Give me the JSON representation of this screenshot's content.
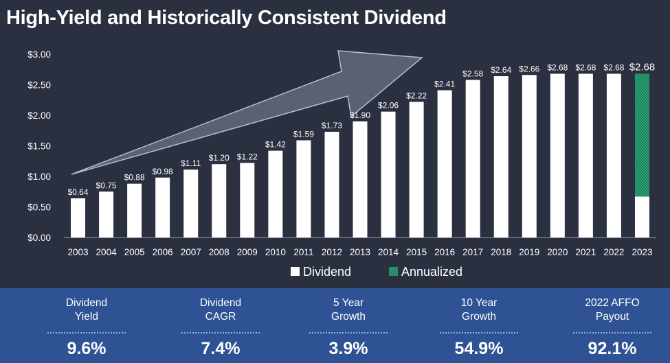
{
  "title": "High-Yield and Historically Consistent Dividend",
  "chart_data": {
    "type": "bar",
    "categories": [
      "2003",
      "2004",
      "2005",
      "2006",
      "2007",
      "2008",
      "2009",
      "2010",
      "2011",
      "2012",
      "2013",
      "2014",
      "2015",
      "2016",
      "2017",
      "2018",
      "2019",
      "2020",
      "2021",
      "2022",
      "2023"
    ],
    "series": [
      {
        "name": "Dividend",
        "values": [
          0.64,
          0.75,
          0.88,
          0.98,
          1.11,
          1.2,
          1.22,
          1.42,
          1.59,
          1.73,
          1.9,
          2.06,
          2.22,
          2.41,
          2.58,
          2.64,
          2.66,
          2.68,
          2.68,
          2.68,
          0.67
        ]
      },
      {
        "name": "Annualized",
        "values": [
          0,
          0,
          0,
          0,
          0,
          0,
          0,
          0,
          0,
          0,
          0,
          0,
          0,
          0,
          0,
          0,
          0,
          0,
          0,
          0,
          2.01
        ]
      }
    ],
    "data_labels": [
      "$0.64",
      "$0.75",
      "$0.88",
      "$0.98",
      "$1.11",
      "$1.20",
      "$1.22",
      "$1.42",
      "$1.59",
      "$1.73",
      "$1.90",
      "$2.06",
      "$2.22",
      "$2.41",
      "$2.58",
      "$2.64",
      "$2.66",
      "$2.68",
      "$2.68",
      "$2.68",
      "$2.68"
    ],
    "ytick_labels": [
      "$0.00",
      "$0.50",
      "$1.00",
      "$1.50",
      "$2.00",
      "$2.50",
      "$3.00"
    ],
    "yticks": [
      0,
      0.5,
      1.0,
      1.5,
      2.0,
      2.5,
      3.0
    ],
    "ylim": [
      0,
      3.0
    ],
    "legend": "bottom",
    "colors": {
      "Dividend": "#ffffff",
      "Annualized": "#2fa57a",
      "arrow": "#5a6170",
      "background": "#2b3040"
    }
  },
  "metrics": [
    {
      "label_line1": "Dividend",
      "label_line2": "Yield",
      "value": "9.6%"
    },
    {
      "label_line1": "Dividend",
      "label_line2": "CAGR",
      "value": "7.4%"
    },
    {
      "label_line1": "5 Year",
      "label_line2": "Growth",
      "value": "3.9%"
    },
    {
      "label_line1": "10 Year",
      "label_line2": "Growth",
      "value": "54.9%"
    },
    {
      "label_line1": "2022 AFFO",
      "label_line2": "Payout",
      "value": "92.1%"
    }
  ],
  "colors": {
    "band": "#2e5294"
  }
}
